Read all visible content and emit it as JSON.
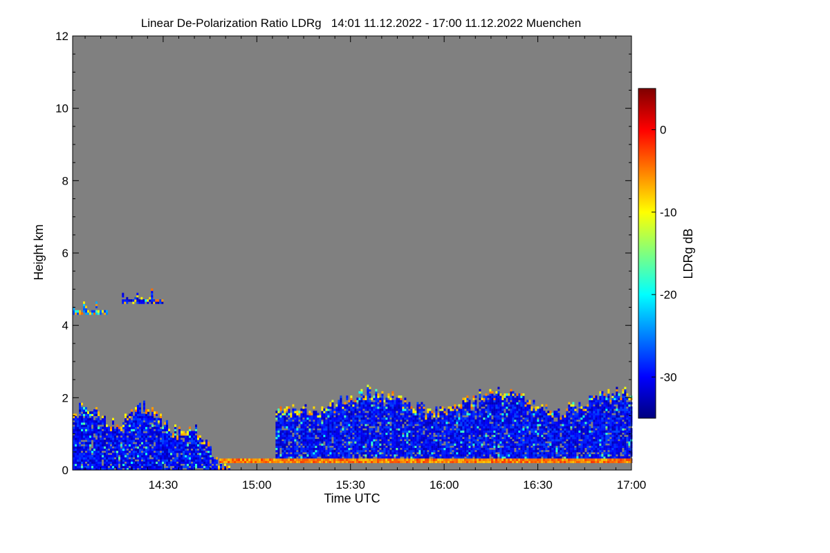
{
  "chart_data": {
    "type": "heatmap",
    "title": "Linear De-Polarization Ratio LDRg   14:01 11.12.2022 - 17:00 11.12.2022 Muenchen",
    "xlabel": "Time UTC",
    "ylabel": "Height km",
    "x_range_hours": [
      14.0167,
      17.0
    ],
    "y_range_km": [
      0,
      12
    ],
    "x_ticks": [
      {
        "value": 14.5,
        "label": "14:30"
      },
      {
        "value": 15.0,
        "label": "15:00"
      },
      {
        "value": 15.5,
        "label": "15:30"
      },
      {
        "value": 16.0,
        "label": "16:00"
      },
      {
        "value": 16.5,
        "label": "16:30"
      },
      {
        "value": 17.0,
        "label": "17:00"
      }
    ],
    "y_ticks": [
      0,
      2,
      4,
      6,
      8,
      10,
      12
    ],
    "colorbar": {
      "label": "LDRg dB",
      "range": [
        -35,
        5
      ],
      "ticks": [
        0,
        -10,
        -20,
        -30
      ],
      "colormap": [
        "#00007f",
        "#0000ff",
        "#007fff",
        "#00ffff",
        "#7fff7f",
        "#ffff00",
        "#ff7f00",
        "#ff0000",
        "#7f0000"
      ]
    },
    "no_data_color": "#808080",
    "features": [
      {
        "name": "low cloud/aerosol layer early",
        "t": [
          14.0167,
          14.85
        ],
        "z": [
          0.0,
          1.8
        ],
        "ldr_db": -30
      },
      {
        "name": "thin elevated layer",
        "t": [
          14.28,
          14.5
        ],
        "z": [
          4.6,
          4.9
        ],
        "ldr_db": -30
      },
      {
        "name": "elevated layer start",
        "t": [
          14.0167,
          14.2
        ],
        "z": [
          4.3,
          4.6
        ],
        "ldr_db": -25
      },
      {
        "name": "boundary layer afternoon",
        "t": [
          15.1,
          17.0
        ],
        "z": [
          0.2,
          2.2
        ],
        "ldr_db": -30
      },
      {
        "name": "near-ground depolarizing layer",
        "t": [
          14.8,
          17.0
        ],
        "z": [
          0.2,
          0.3
        ],
        "ldr_db": -5
      }
    ]
  }
}
